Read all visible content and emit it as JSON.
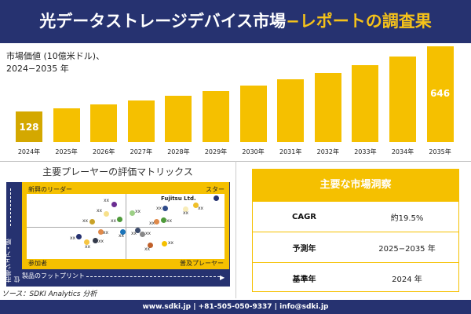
{
  "header": {
    "title_main": "光データストレージデバイス市場",
    "title_highlight": "−レポートの調査果"
  },
  "chart_subtitle": {
    "line1": "市場価値 (10億米ドル)、",
    "line2": "2024−2035 年"
  },
  "chart_data": {
    "type": "bar",
    "title": "",
    "categories": [
      "2024年",
      "2025年",
      "2026年",
      "2027年",
      "2028年",
      "2029年",
      "2030年",
      "2031年",
      "2032年",
      "2033年",
      "2034年",
      "2035年"
    ],
    "values": [
      128,
      153,
      184,
      215,
      253,
      290,
      334,
      384,
      434,
      496,
      565,
      646
    ],
    "data_labels": {
      "0": "128",
      "11": "646"
    },
    "bar_color": "#f5c000",
    "first_bar_color": "#d4a800"
  },
  "matrix": {
    "title": "主要プレーヤーの評価マトリックス",
    "q_tl": "新興のリーダー",
    "q_tr": "スター",
    "q_bl": "参加者",
    "q_br": "普及プレーヤー",
    "y_axis": "市場シェア・順位",
    "x_axis": "製品のフットプリント",
    "highlight_company": "Fujitsu Ltd.",
    "placeholder": "xx"
  },
  "insights": {
    "title": "主要な市場洞察",
    "rows": [
      {
        "key": "CAGR",
        "value": "約19.5%"
      },
      {
        "key": "予測年",
        "value": "2025−2035 年"
      },
      {
        "key": "基準年",
        "value": "2024 年"
      }
    ]
  },
  "source": "ソース：SDKI Analytics 分析",
  "footer": "www.sdki.jp | +81-505-050-9337 | info@sdki.jp",
  "colors": {
    "navy": "#263270",
    "accent": "#f5c000"
  }
}
